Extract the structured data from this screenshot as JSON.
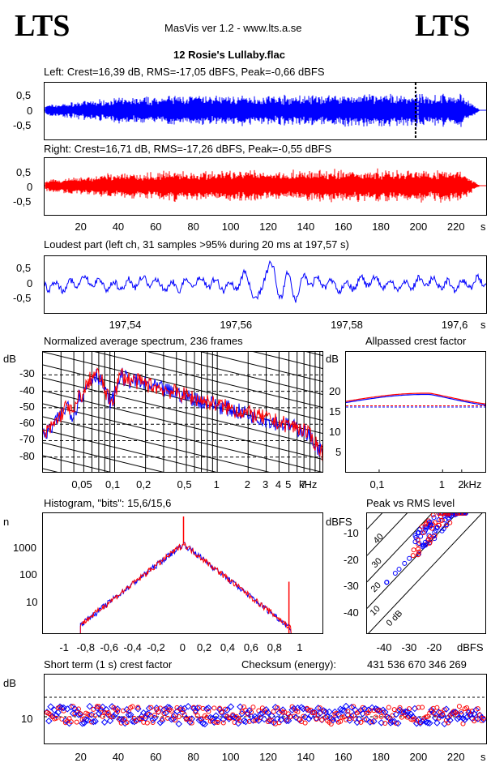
{
  "header": {
    "logo_left": "LTS",
    "logo_right": "LTS",
    "app_title": "MasVis ver 1.2 - www.lts.a.se",
    "file_title": "12 Rosie's Lullaby.flac"
  },
  "colors": {
    "left": "#0000ff",
    "right": "#ff0000"
  },
  "chart_data": [
    {
      "id": "left-waveform",
      "type": "area",
      "title": "Left: Crest=16,39 dB, RMS=-17,05 dBFS, Peak=-0,66 dBFS",
      "yticks": [
        "0,5",
        "0",
        "-0,5"
      ],
      "ylim": [
        -1,
        1
      ],
      "xlim": [
        0,
        236
      ],
      "loudest_marker_s": 197.57
    },
    {
      "id": "right-waveform",
      "type": "area",
      "title": "Right: Crest=16,71 dB, RMS=-17,26 dBFS, Peak=-0,55 dBFS",
      "yticks": [
        "0,5",
        "0",
        "-0,5"
      ],
      "ylim": [
        -1,
        1
      ],
      "xlim": [
        0,
        236
      ],
      "xticks": [
        "20",
        "40",
        "60",
        "80",
        "100",
        "120",
        "140",
        "160",
        "180",
        "200",
        "220",
        "s"
      ]
    },
    {
      "id": "loudest-part",
      "type": "line",
      "title": "Loudest part (left  ch, 31 samples >95% during 20 ms at 197,57 s)",
      "yticks": [
        "0,5",
        "0",
        "-0,5"
      ],
      "xticks": [
        "197,54",
        "197,56",
        "197,58",
        "197,6",
        "s"
      ],
      "xlim": [
        197.525,
        197.605
      ]
    },
    {
      "id": "spectrum",
      "type": "line",
      "title": "Normalized average spectrum, 236 frames",
      "ylabel": "dB",
      "yticks": [
        "-30",
        "-40",
        "-50",
        "-60",
        "-70",
        "-80"
      ],
      "xticks": [
        "0,05",
        "0,1",
        "0,2",
        "0,5",
        "1",
        "2",
        "3",
        "4",
        "5",
        "7",
        "kHz"
      ],
      "ylim": [
        -90,
        -16
      ]
    },
    {
      "id": "allpassed-crest",
      "type": "line",
      "title": "Allpassed crest factor",
      "ylabel": "dB",
      "yticks": [
        "20",
        "15",
        "10",
        "5"
      ],
      "xticks": [
        "0,1",
        "1",
        "2",
        "kHz"
      ],
      "ylim": [
        0,
        30
      ]
    },
    {
      "id": "histogram",
      "type": "bar",
      "title": "Histogram, \"bits\": 15,6/15,6",
      "ylabel": "n",
      "yticks": [
        "1000",
        "100",
        "10"
      ],
      "xticks": [
        "-1",
        "-0,8",
        "-0,6",
        "-0,4",
        "-0,2",
        "0",
        "0,2",
        "0,4",
        "0,6",
        "0,8",
        "1"
      ]
    },
    {
      "id": "peak-vs-rms",
      "type": "scatter",
      "title": "Peak vs RMS level",
      "ylabel": "dBFS",
      "xlabel": "dBFS",
      "yticks": [
        "-10",
        "-20",
        "-30",
        "-40"
      ],
      "xticks": [
        "-40",
        "-30",
        "-20"
      ],
      "diag_labels": [
        "40",
        "30",
        "20",
        "10",
        "0 dB"
      ]
    },
    {
      "id": "short-term-crest",
      "type": "scatter",
      "title": "Short term (1 s) crest factor",
      "ylabel": "dB",
      "yticks": [
        "10"
      ],
      "xticks": [
        "20",
        "40",
        "60",
        "80",
        "100",
        "120",
        "140",
        "160",
        "180",
        "200",
        "220",
        "s"
      ],
      "checksum_label": "Checksum (energy):",
      "checksum_value": "431 536 670 346 269"
    }
  ]
}
